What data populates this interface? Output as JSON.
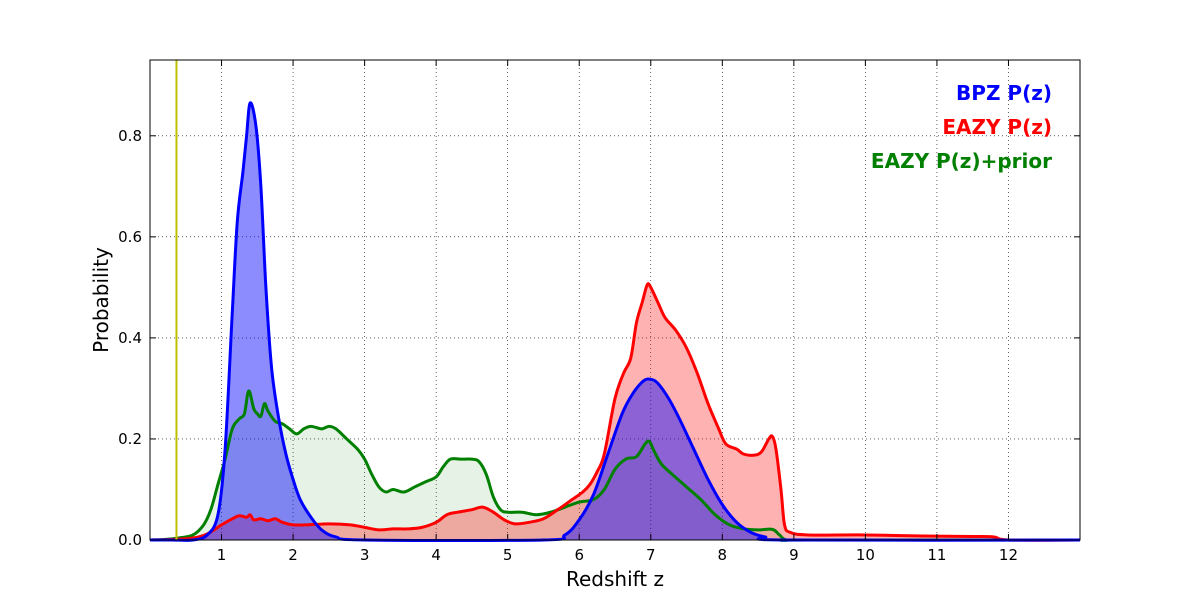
{
  "chart_data": {
    "type": "area",
    "xlabel": "Redshift z",
    "ylabel": "Probability",
    "xlim": [
      0,
      13
    ],
    "ylim": [
      0,
      0.95
    ],
    "grid": true,
    "legend_position": "top-right",
    "x_ticks": [
      1,
      2,
      3,
      4,
      5,
      6,
      7,
      8,
      9,
      10,
      11,
      12
    ],
    "y_ticks": [
      0.0,
      0.2,
      0.4,
      0.6,
      0.8
    ],
    "y_tick_labels": [
      "0.0",
      "0.2",
      "0.4",
      "0.6",
      "0.8"
    ],
    "vline": {
      "x": 0.37,
      "color": "#bfbf00"
    },
    "series": [
      {
        "name": "EAZY P(z)+prior",
        "color": "#008000",
        "fill": "#008000",
        "fill_opacity": 0.1,
        "points": [
          [
            0,
            0
          ],
          [
            0.2,
            0.001
          ],
          [
            0.4,
            0.004
          ],
          [
            0.6,
            0.01
          ],
          [
            0.75,
            0.03
          ],
          [
            0.85,
            0.06
          ],
          [
            0.95,
            0.11
          ],
          [
            1.05,
            0.16
          ],
          [
            1.15,
            0.22
          ],
          [
            1.25,
            0.24
          ],
          [
            1.32,
            0.25
          ],
          [
            1.38,
            0.295
          ],
          [
            1.45,
            0.26
          ],
          [
            1.5,
            0.25
          ],
          [
            1.55,
            0.245
          ],
          [
            1.6,
            0.27
          ],
          [
            1.65,
            0.255
          ],
          [
            1.75,
            0.235
          ],
          [
            1.85,
            0.23
          ],
          [
            1.95,
            0.22
          ],
          [
            2.05,
            0.21
          ],
          [
            2.15,
            0.22
          ],
          [
            2.25,
            0.225
          ],
          [
            2.4,
            0.22
          ],
          [
            2.5,
            0.225
          ],
          [
            2.6,
            0.22
          ],
          [
            2.75,
            0.2
          ],
          [
            2.9,
            0.18
          ],
          [
            3.0,
            0.16
          ],
          [
            3.1,
            0.13
          ],
          [
            3.2,
            0.105
          ],
          [
            3.3,
            0.095
          ],
          [
            3.4,
            0.1
          ],
          [
            3.55,
            0.095
          ],
          [
            3.7,
            0.105
          ],
          [
            3.85,
            0.115
          ],
          [
            4.0,
            0.125
          ],
          [
            4.1,
            0.145
          ],
          [
            4.2,
            0.16
          ],
          [
            4.35,
            0.16
          ],
          [
            4.5,
            0.16
          ],
          [
            4.6,
            0.155
          ],
          [
            4.7,
            0.13
          ],
          [
            4.8,
            0.085
          ],
          [
            4.9,
            0.06
          ],
          [
            5.0,
            0.055
          ],
          [
            5.2,
            0.055
          ],
          [
            5.4,
            0.05
          ],
          [
            5.6,
            0.055
          ],
          [
            5.8,
            0.065
          ],
          [
            6.0,
            0.075
          ],
          [
            6.2,
            0.08
          ],
          [
            6.35,
            0.1
          ],
          [
            6.5,
            0.14
          ],
          [
            6.65,
            0.16
          ],
          [
            6.8,
            0.165
          ],
          [
            6.92,
            0.19
          ],
          [
            6.98,
            0.195
          ],
          [
            7.05,
            0.175
          ],
          [
            7.15,
            0.15
          ],
          [
            7.3,
            0.13
          ],
          [
            7.5,
            0.105
          ],
          [
            7.7,
            0.08
          ],
          [
            7.9,
            0.05
          ],
          [
            8.1,
            0.03
          ],
          [
            8.3,
            0.022
          ],
          [
            8.5,
            0.02
          ],
          [
            8.7,
            0.021
          ],
          [
            8.8,
            0.01
          ],
          [
            8.9,
            0.0
          ],
          [
            9.2,
            0.0
          ],
          [
            13,
            0.0
          ]
        ]
      },
      {
        "name": "EAZY P(z)",
        "color": "#ff0000",
        "fill": "#ff0000",
        "fill_opacity": 0.3,
        "points": [
          [
            0,
            0
          ],
          [
            0.3,
            0.001
          ],
          [
            0.6,
            0.004
          ],
          [
            0.8,
            0.012
          ],
          [
            1.0,
            0.03
          ],
          [
            1.15,
            0.042
          ],
          [
            1.25,
            0.048
          ],
          [
            1.35,
            0.045
          ],
          [
            1.4,
            0.05
          ],
          [
            1.45,
            0.04
          ],
          [
            1.55,
            0.042
          ],
          [
            1.65,
            0.038
          ],
          [
            1.75,
            0.042
          ],
          [
            1.85,
            0.035
          ],
          [
            2.0,
            0.03
          ],
          [
            2.2,
            0.03
          ],
          [
            2.5,
            0.032
          ],
          [
            2.8,
            0.03
          ],
          [
            3.0,
            0.025
          ],
          [
            3.2,
            0.02
          ],
          [
            3.4,
            0.022
          ],
          [
            3.6,
            0.022
          ],
          [
            3.8,
            0.025
          ],
          [
            4.0,
            0.035
          ],
          [
            4.15,
            0.05
          ],
          [
            4.3,
            0.055
          ],
          [
            4.5,
            0.06
          ],
          [
            4.65,
            0.065
          ],
          [
            4.8,
            0.055
          ],
          [
            4.95,
            0.04
          ],
          [
            5.1,
            0.032
          ],
          [
            5.3,
            0.035
          ],
          [
            5.5,
            0.042
          ],
          [
            5.7,
            0.06
          ],
          [
            5.9,
            0.08
          ],
          [
            6.05,
            0.095
          ],
          [
            6.15,
            0.11
          ],
          [
            6.25,
            0.135
          ],
          [
            6.35,
            0.17
          ],
          [
            6.5,
            0.28
          ],
          [
            6.62,
            0.33
          ],
          [
            6.72,
            0.36
          ],
          [
            6.8,
            0.43
          ],
          [
            6.88,
            0.47
          ],
          [
            6.95,
            0.505
          ],
          [
            7.0,
            0.5
          ],
          [
            7.1,
            0.47
          ],
          [
            7.2,
            0.44
          ],
          [
            7.35,
            0.415
          ],
          [
            7.5,
            0.38
          ],
          [
            7.65,
            0.33
          ],
          [
            7.8,
            0.27
          ],
          [
            7.95,
            0.22
          ],
          [
            8.05,
            0.19
          ],
          [
            8.2,
            0.18
          ],
          [
            8.3,
            0.17
          ],
          [
            8.45,
            0.168
          ],
          [
            8.55,
            0.175
          ],
          [
            8.65,
            0.2
          ],
          [
            8.7,
            0.205
          ],
          [
            8.75,
            0.18
          ],
          [
            8.82,
            0.1
          ],
          [
            8.87,
            0.03
          ],
          [
            8.95,
            0.015
          ],
          [
            9.2,
            0.01
          ],
          [
            10.0,
            0.01
          ],
          [
            10.8,
            0.008
          ],
          [
            11.5,
            0.007
          ],
          [
            11.8,
            0.006
          ],
          [
            12.0,
            0.0
          ],
          [
            13,
            0.0
          ]
        ]
      },
      {
        "name": "BPZ P(z)",
        "color": "#0000ff",
        "fill": "#0000ff",
        "fill_opacity": 0.45,
        "points": [
          [
            0,
            0
          ],
          [
            0.3,
            0.0
          ],
          [
            0.6,
            0.0
          ],
          [
            0.8,
            0.01
          ],
          [
            0.95,
            0.05
          ],
          [
            1.05,
            0.18
          ],
          [
            1.15,
            0.45
          ],
          [
            1.22,
            0.63
          ],
          [
            1.3,
            0.73
          ],
          [
            1.35,
            0.8
          ],
          [
            1.4,
            0.865
          ],
          [
            1.48,
            0.82
          ],
          [
            1.55,
            0.7
          ],
          [
            1.62,
            0.5
          ],
          [
            1.7,
            0.34
          ],
          [
            1.8,
            0.24
          ],
          [
            1.9,
            0.17
          ],
          [
            2.0,
            0.12
          ],
          [
            2.1,
            0.08
          ],
          [
            2.25,
            0.045
          ],
          [
            2.4,
            0.02
          ],
          [
            2.6,
            0.006
          ],
          [
            3.0,
            0.0
          ],
          [
            5.5,
            0.0
          ],
          [
            5.8,
            0.01
          ],
          [
            6.0,
            0.04
          ],
          [
            6.2,
            0.09
          ],
          [
            6.4,
            0.17
          ],
          [
            6.6,
            0.25
          ],
          [
            6.75,
            0.29
          ],
          [
            6.9,
            0.315
          ],
          [
            7.0,
            0.318
          ],
          [
            7.1,
            0.31
          ],
          [
            7.25,
            0.28
          ],
          [
            7.4,
            0.24
          ],
          [
            7.6,
            0.18
          ],
          [
            7.8,
            0.12
          ],
          [
            8.0,
            0.07
          ],
          [
            8.2,
            0.035
          ],
          [
            8.4,
            0.015
          ],
          [
            8.6,
            0.006
          ],
          [
            8.9,
            0.0
          ],
          [
            13,
            0.0
          ]
        ]
      }
    ],
    "legend": [
      {
        "label": "BPZ P(z)",
        "color": "#0000ff"
      },
      {
        "label": "EAZY P(z)",
        "color": "#ff0000"
      },
      {
        "label": "EAZY P(z)+prior",
        "color": "#008000"
      }
    ]
  }
}
